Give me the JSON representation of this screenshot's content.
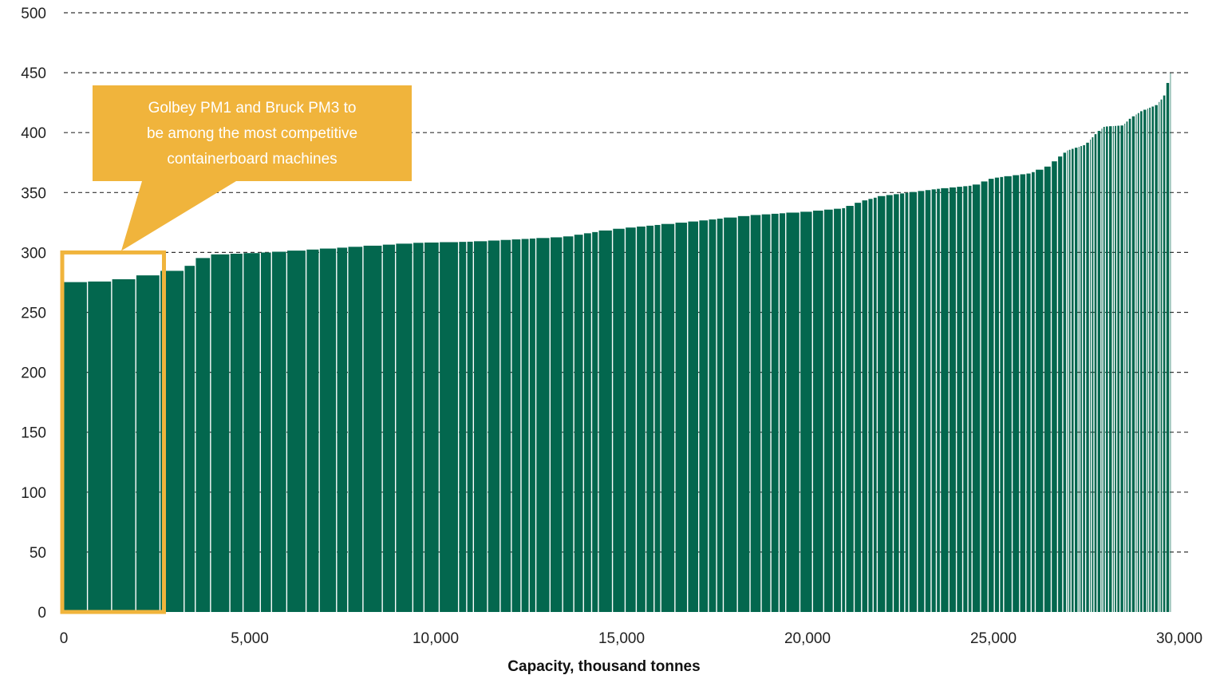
{
  "chart_data": {
    "type": "bar",
    "subtype": "variable-width cost curve",
    "title": "",
    "xlabel": "Capacity, thousand tonnes",
    "ylabel": "",
    "xlim": [
      0,
      30000
    ],
    "ylim": [
      0,
      500
    ],
    "x_ticks": [
      0,
      5000,
      10000,
      15000,
      20000,
      25000,
      30000
    ],
    "x_tick_labels": [
      "0",
      "5,000",
      "10,000",
      "15,000",
      "20,000",
      "25,000",
      "30,000"
    ],
    "y_ticks": [
      0,
      50,
      100,
      150,
      200,
      250,
      300,
      350,
      400,
      450,
      500
    ],
    "y_tick_labels": [
      "0",
      "50",
      "100",
      "150",
      "200",
      "250",
      "300",
      "350",
      "400",
      "450",
      "500"
    ],
    "grid": "horizontal dashed",
    "legend": "none",
    "bar_color": "#03674E",
    "highlight_color": "#F0B43C",
    "curve_points": [
      [
        0,
        275
      ],
      [
        1300,
        276
      ],
      [
        2500,
        282
      ],
      [
        3300,
        287
      ],
      [
        3900,
        298
      ],
      [
        5500,
        300
      ],
      [
        7500,
        304
      ],
      [
        9500,
        308
      ],
      [
        11000,
        309
      ],
      [
        13500,
        313
      ],
      [
        14500,
        318
      ],
      [
        15000,
        320
      ],
      [
        17000,
        326
      ],
      [
        18500,
        331
      ],
      [
        20000,
        334
      ],
      [
        21000,
        337
      ],
      [
        21500,
        343
      ],
      [
        22000,
        347
      ],
      [
        23500,
        353
      ],
      [
        24500,
        356
      ],
      [
        25000,
        362
      ],
      [
        26000,
        366
      ],
      [
        26500,
        372
      ],
      [
        27000,
        385
      ],
      [
        27500,
        390
      ],
      [
        27800,
        400
      ],
      [
        28000,
        405
      ],
      [
        28500,
        406
      ],
      [
        28700,
        412
      ],
      [
        29000,
        418
      ],
      [
        29400,
        423
      ],
      [
        29600,
        430
      ],
      [
        29800,
        452
      ]
    ],
    "annotation": {
      "text": [
        "Golbey PM1 and Bruck PM3 to",
        "be among the most competitive",
        "containerboard machines"
      ],
      "highlight_x_range": [
        0,
        2650
      ],
      "highlight_y_range": [
        0,
        300
      ]
    }
  }
}
